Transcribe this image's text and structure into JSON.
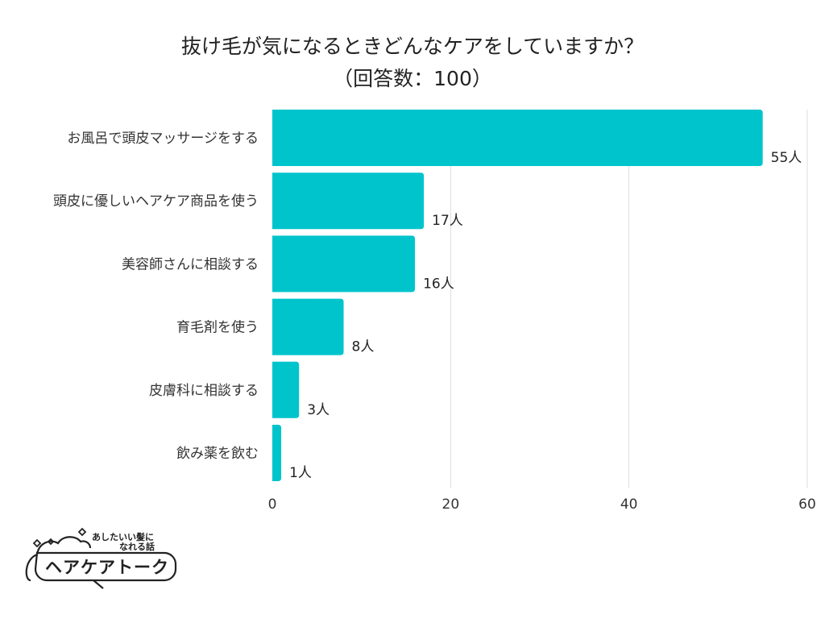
{
  "chart_data": {
    "type": "bar",
    "orientation": "horizontal",
    "title": "抜け毛が気になるときどんなケアをしていますか？",
    "subtitle": "（回答数：100）",
    "categories": [
      "お風呂で頭皮マッサージをする",
      "頭皮に優しいヘアケア商品を使う",
      "美容師さんに相談する",
      "育毛剤を使う",
      "皮膚科に相談する",
      "飲み薬を飲む"
    ],
    "values": [
      55,
      17,
      16,
      8,
      3,
      1
    ],
    "value_labels": [
      "55人",
      "17人",
      "16人",
      "8人",
      "3人",
      "1人"
    ],
    "xlim": [
      0,
      60
    ],
    "x_ticks": [
      0,
      20,
      40,
      60
    ],
    "grid": true,
    "bar_color": "#00c4cc",
    "grid_color": "#dddddd"
  },
  "logo": {
    "tagline_line1": "あしたいい髪に",
    "tagline_line2": "なれる話",
    "name": "ヘアケアトーク"
  }
}
